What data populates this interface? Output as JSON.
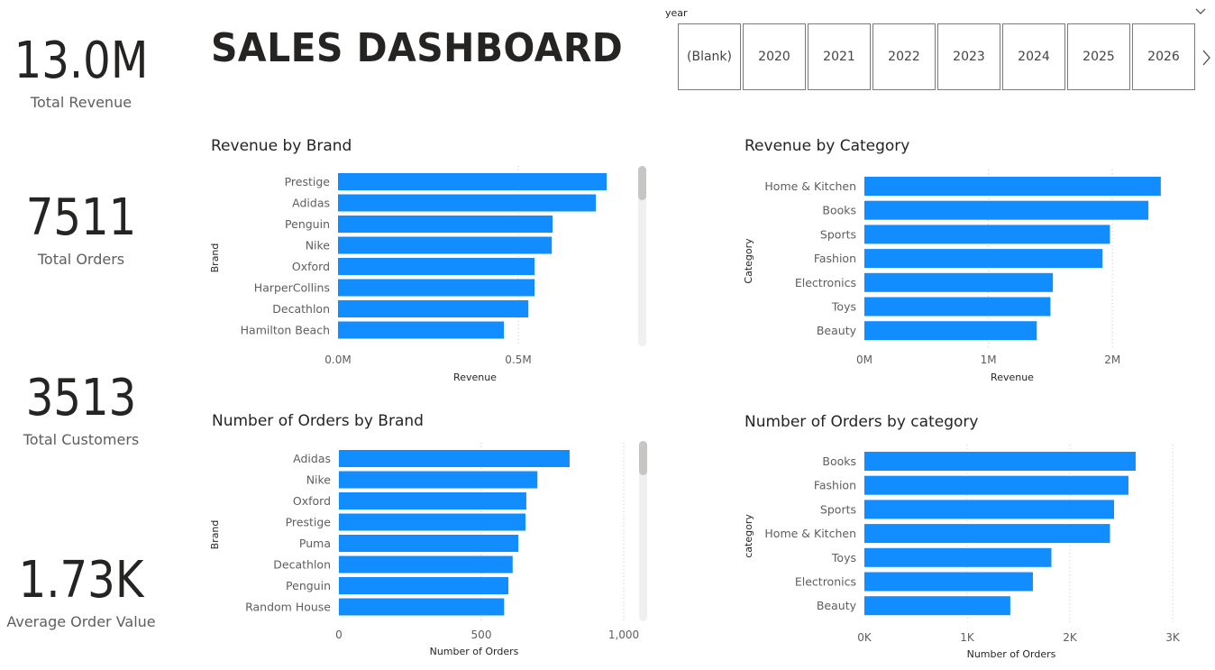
{
  "kpis": [
    {
      "value": "13.0M",
      "label": "Total Revenue"
    },
    {
      "value": "7511",
      "label": "Total Orders"
    },
    {
      "value": "3513",
      "label": "Total Customers"
    },
    {
      "value": "1.73K",
      "label": "Average Order Value"
    }
  ],
  "dashboard": {
    "title": "SALES DASHBOARD"
  },
  "slicer": {
    "header": "year",
    "options": [
      "(Blank)",
      "2020",
      "2021",
      "2022",
      "2023",
      "2024",
      "2025",
      "2026"
    ],
    "icons": {
      "expand": "chevron-down-icon",
      "next": "chevron-right-icon"
    }
  },
  "colors": {
    "bar": "#118DFF",
    "grid": "#c8c6c4",
    "scroll_track": "#f0f0f0",
    "scroll_thumb": "#c8c6c4"
  },
  "chart_data": [
    {
      "id": "revenue-by-brand",
      "type": "bar",
      "orientation": "horizontal",
      "title": "Revenue by Brand",
      "xlabel": "Revenue",
      "ylabel": "Brand",
      "categories": [
        "Prestige",
        "Adidas",
        "Penguin",
        "Nike",
        "Oxford",
        "HarperCollins",
        "Decathlon",
        "Hamilton Beach"
      ],
      "values": [
        0.745,
        0.715,
        0.595,
        0.593,
        0.545,
        0.545,
        0.528,
        0.46
      ],
      "xlim": [
        0,
        0.8
      ],
      "ticks": [
        {
          "value": 0,
          "label": "0.0M"
        },
        {
          "value": 0.5,
          "label": "0.5M"
        }
      ],
      "scrollbar": true,
      "grid": true
    },
    {
      "id": "revenue-by-category",
      "type": "bar",
      "orientation": "horizontal",
      "title": "Revenue by Category",
      "xlabel": "Revenue",
      "ylabel": "Category",
      "categories": [
        "Home & Kitchen",
        "Books",
        "Sports",
        "Fashion",
        "Electronics",
        "Toys",
        "Beauty"
      ],
      "values": [
        2.39,
        2.29,
        1.98,
        1.92,
        1.52,
        1.5,
        1.39
      ],
      "xlim": [
        0,
        2.5
      ],
      "ticks": [
        {
          "value": 0,
          "label": "0M"
        },
        {
          "value": 1,
          "label": "1M"
        },
        {
          "value": 2,
          "label": "2M"
        }
      ],
      "scrollbar": false,
      "grid": true
    },
    {
      "id": "orders-by-brand",
      "type": "bar",
      "orientation": "horizontal",
      "title": "Number of Orders by Brand",
      "xlabel": "Number of Orders",
      "ylabel": "Brand",
      "categories": [
        "Adidas",
        "Nike",
        "Oxford",
        "Prestige",
        "Puma",
        "Decathlon",
        "Penguin",
        "Random House"
      ],
      "values": [
        810,
        697,
        658,
        655,
        630,
        610,
        595,
        580
      ],
      "xlim": [
        0,
        1000
      ],
      "ticks": [
        {
          "value": 0,
          "label": "0"
        },
        {
          "value": 500,
          "label": "500"
        },
        {
          "value": 1000,
          "label": "1,000"
        }
      ],
      "scrollbar": true,
      "grid": true
    },
    {
      "id": "orders-by-category",
      "type": "bar",
      "orientation": "horizontal",
      "title": "Number of Orders by category",
      "xlabel": "Number of Orders",
      "ylabel": "category",
      "categories": [
        "Books",
        "Fashion",
        "Sports",
        "Home & Kitchen",
        "Toys",
        "Electronics",
        "Beauty"
      ],
      "values": [
        2640,
        2570,
        2430,
        2390,
        1820,
        1640,
        1420
      ],
      "xlim": [
        0,
        3000
      ],
      "ticks": [
        {
          "value": 0,
          "label": "0K"
        },
        {
          "value": 1000,
          "label": "1K"
        },
        {
          "value": 2000,
          "label": "2K"
        },
        {
          "value": 3000,
          "label": "3K"
        }
      ],
      "scrollbar": false,
      "grid": true
    }
  ]
}
